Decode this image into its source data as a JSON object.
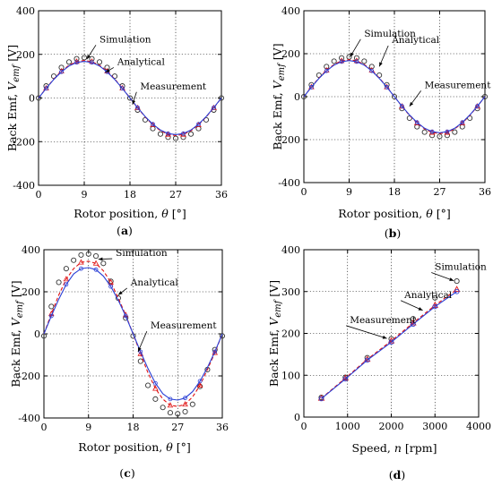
{
  "chart_data": [
    {
      "id": "a",
      "type": "line",
      "panel_label": "a",
      "xlabel": "Rotor position,",
      "xsym": "θ",
      "xunit": "[°]",
      "ylabel": "Back Emf,",
      "ysym": "V",
      "ysub": "emf",
      "yunit": "[V]",
      "xlim": [
        0,
        36
      ],
      "ylim": [
        -400,
        400
      ],
      "xticks": [
        0,
        9,
        18,
        27,
        36
      ],
      "yticks": [
        -400,
        -200,
        0,
        200,
        400
      ],
      "annotations": [
        {
          "text": "Simulation",
          "x": 12.0,
          "y": 255,
          "tx": 9.5,
          "ty": 178
        },
        {
          "text": "Analytical",
          "x": 15.5,
          "y": 152,
          "tx": 13.2,
          "ty": 118
        },
        {
          "text": "Measurement",
          "x": 20.0,
          "y": 40,
          "tx": 18.5,
          "ty": -30
        }
      ],
      "series": [
        {
          "label": "Simulation",
          "style": "circle",
          "color": "#000000",
          "x": [
            0,
            1.5,
            3,
            4.5,
            6,
            7.5,
            9,
            10.5,
            12,
            13.5,
            15,
            16.5,
            18,
            19.5,
            21,
            22.5,
            24,
            25.5,
            27,
            28.5,
            30,
            31.5,
            33,
            34.5,
            36
          ],
          "y": [
            0,
            55,
            100,
            140,
            165,
            180,
            185,
            180,
            165,
            140,
            100,
            55,
            0,
            -55,
            -100,
            -140,
            -165,
            -180,
            -185,
            -180,
            -165,
            -140,
            -100,
            -55,
            0
          ]
        },
        {
          "label": "Analytical",
          "style": "dashed",
          "color": "#e01010",
          "x": [
            0,
            1.5,
            3,
            4.5,
            6,
            7.5,
            9,
            10.5,
            12,
            13.5,
            15,
            16.5,
            18,
            19.5,
            21,
            22.5,
            24,
            25.5,
            27,
            28.5,
            30,
            31.5,
            33,
            34.5,
            36
          ],
          "y": [
            0,
            45,
            87,
            123,
            150,
            167,
            172,
            167,
            150,
            123,
            87,
            45,
            0,
            -45,
            -87,
            -123,
            -150,
            -167,
            -172,
            -167,
            -150,
            -123,
            -87,
            -45,
            0
          ]
        },
        {
          "label": "Measurement",
          "style": "solid",
          "color": "#2a3fd6",
          "x": [
            0,
            1.5,
            3,
            4.5,
            6,
            7.5,
            9,
            10.5,
            12,
            13.5,
            15,
            16.5,
            18,
            19.5,
            21,
            22.5,
            24,
            25.5,
            27,
            28.5,
            30,
            31.5,
            33,
            34.5,
            36
          ],
          "y": [
            0,
            44,
            85,
            120,
            147,
            163,
            168,
            163,
            147,
            120,
            85,
            44,
            0,
            -44,
            -85,
            -120,
            -147,
            -163,
            -168,
            -163,
            -147,
            -120,
            -85,
            -44,
            0
          ]
        }
      ]
    },
    {
      "id": "b",
      "type": "line",
      "panel_label": "b",
      "xlabel": "Rotor position,",
      "xsym": "θ",
      "xunit": "[°]",
      "ylabel": "Back Emf,",
      "ysym": "V",
      "ysub": "emf",
      "yunit": "[V]",
      "xlim": [
        0,
        36
      ],
      "ylim": [
        -400,
        400
      ],
      "xticks": [
        0,
        9,
        18,
        27,
        36
      ],
      "yticks": [
        -400,
        -200,
        0,
        200,
        400
      ],
      "annotations": [
        {
          "text": "Simulation",
          "x": 12.0,
          "y": 280,
          "tx": 9.2,
          "ty": 185
        },
        {
          "text": "Analytical",
          "x": 17.5,
          "y": 250,
          "tx": 15.0,
          "ty": 140
        },
        {
          "text": "Measurement",
          "x": 24.0,
          "y": 40,
          "tx": 21.0,
          "ty": -45
        }
      ],
      "series": [
        {
          "label": "Simulation",
          "style": "circle",
          "color": "#000000",
          "x": [
            0,
            1.5,
            3,
            4.5,
            6,
            7.5,
            9,
            10.5,
            12,
            13.5,
            15,
            16.5,
            18,
            19.5,
            21,
            22.5,
            24,
            25.5,
            27,
            28.5,
            30,
            31.5,
            33,
            34.5,
            36
          ],
          "y": [
            0,
            55,
            100,
            140,
            165,
            180,
            185,
            180,
            165,
            140,
            100,
            55,
            0,
            -55,
            -100,
            -140,
            -165,
            -180,
            -185,
            -180,
            -165,
            -140,
            -100,
            -55,
            0
          ]
        },
        {
          "label": "Analytical",
          "style": "dashed",
          "color": "#e01010",
          "x": [
            0,
            1.5,
            3,
            4.5,
            6,
            7.5,
            9,
            10.5,
            12,
            13.5,
            15,
            16.5,
            18,
            19.5,
            21,
            22.5,
            24,
            25.5,
            27,
            28.5,
            30,
            31.5,
            33,
            34.5,
            36
          ],
          "y": [
            0,
            45,
            87,
            123,
            150,
            167,
            172,
            167,
            150,
            123,
            87,
            45,
            0,
            -45,
            -87,
            -123,
            -150,
            -167,
            -172,
            -167,
            -150,
            -123,
            -87,
            -45,
            0
          ]
        },
        {
          "label": "Measurement",
          "style": "solid",
          "color": "#2a3fd6",
          "x": [
            0,
            1.5,
            3,
            4.5,
            6,
            7.5,
            9,
            10.5,
            12,
            13.5,
            15,
            16.5,
            18,
            19.5,
            21,
            22.5,
            24,
            25.5,
            27,
            28.5,
            30,
            31.5,
            33,
            34.5,
            36
          ],
          "y": [
            0,
            44,
            85,
            120,
            147,
            163,
            168,
            163,
            147,
            120,
            85,
            44,
            0,
            -44,
            -85,
            -120,
            -147,
            -163,
            -168,
            -163,
            -147,
            -120,
            -85,
            -44,
            0
          ]
        }
      ]
    },
    {
      "id": "c",
      "type": "line",
      "panel_label": "c",
      "xlabel": "Rotor position,",
      "xsym": "θ",
      "xunit": "[°]",
      "ylabel": "Back Emf,",
      "ysym": "V",
      "ysub": "emf",
      "yunit": "[V]",
      "xlim": [
        0,
        36
      ],
      "ylim": [
        -400,
        400
      ],
      "xticks": [
        0,
        9,
        18,
        27,
        36
      ],
      "yticks": [
        -400,
        -200,
        0,
        200,
        400
      ],
      "annotations": [
        {
          "text": "Simulation",
          "x": 14.5,
          "y": 370,
          "tx": 11.0,
          "ty": 355
        },
        {
          "text": "Analytical",
          "x": 17.5,
          "y": 230,
          "tx": 15.0,
          "ty": 185
        },
        {
          "text": "Measurement",
          "x": 21.5,
          "y": 25,
          "tx": 19.0,
          "ty": -85
        }
      ],
      "series": [
        {
          "label": "Simulation",
          "style": "circle",
          "color": "#000000",
          "x": [
            0,
            1.5,
            3,
            4.5,
            6,
            7.5,
            9,
            10.5,
            12,
            13.5,
            15,
            16.5,
            18,
            19.5,
            21,
            22.5,
            24,
            25.5,
            27,
            28.5,
            30,
            31.5,
            33,
            34.5,
            36
          ],
          "y": [
            -10,
            130,
            245,
            310,
            350,
            375,
            380,
            370,
            335,
            250,
            170,
            75,
            -10,
            -130,
            -245,
            -310,
            -350,
            -375,
            -380,
            -370,
            -335,
            -250,
            -170,
            -75,
            -10
          ]
        },
        {
          "label": "Analytical",
          "style": "dashed",
          "color": "#e01010",
          "x": [
            0,
            1.5,
            3,
            4.5,
            6,
            7.5,
            9,
            10.5,
            12,
            13.5,
            15,
            16.5,
            18,
            19.5,
            21,
            22.5,
            24,
            25.5,
            27,
            28.5,
            30,
            31.5,
            33,
            34.5,
            36
          ],
          "y": [
            0,
            95,
            185,
            260,
            310,
            340,
            345,
            335,
            300,
            245,
            170,
            90,
            0,
            -95,
            -185,
            -260,
            -310,
            -340,
            -345,
            -335,
            -300,
            -245,
            -170,
            -90,
            0
          ]
        },
        {
          "label": "Measurement",
          "style": "solid",
          "color": "#2a3fd6",
          "x": [
            0,
            1.5,
            3,
            4.5,
            6,
            7.5,
            9,
            10.5,
            12,
            13.5,
            15,
            16.5,
            18,
            19.5,
            21,
            22.5,
            24,
            25.5,
            27,
            28.5,
            30,
            31.5,
            33,
            34.5,
            36
          ],
          "y": [
            0,
            85,
            165,
            235,
            285,
            310,
            315,
            305,
            275,
            225,
            160,
            85,
            0,
            -85,
            -165,
            -235,
            -285,
            -310,
            -315,
            -305,
            -275,
            -225,
            -160,
            -85,
            0
          ]
        }
      ]
    },
    {
      "id": "d",
      "type": "line",
      "panel_label": "d",
      "xlabel": "Speed,",
      "xsym": "n",
      "xunit": "[rpm]",
      "ylabel": "Back Emf,",
      "ysym": "V",
      "ysub": "emf",
      "yunit": "[V]",
      "xlim": [
        0,
        4000
      ],
      "ylim": [
        0,
        400
      ],
      "xticks": [
        0,
        1000,
        2000,
        3000,
        4000
      ],
      "yticks": [
        0,
        100,
        200,
        300,
        400
      ],
      "annotations": [
        {
          "text": "Simulation",
          "x": 3000,
          "y": 352,
          "tx": 3430,
          "ty": 326
        },
        {
          "text": "Analytical",
          "x": 2300,
          "y": 285,
          "tx": 2720,
          "ty": 255
        },
        {
          "text": "Measurement",
          "x": 1050,
          "y": 225,
          "tx": 1900,
          "ty": 188
        }
      ],
      "series": [
        {
          "label": "Simulation",
          "style": "circle",
          "color": "#000000",
          "x": [
            400,
            950,
            1450,
            2000,
            2500,
            3000,
            3500
          ],
          "y": [
            47,
            95,
            142,
            187,
            235,
            285,
            325
          ]
        },
        {
          "label": "Analytical",
          "style": "dashed-triangle",
          "color": "#e01010",
          "x": [
            400,
            950,
            1450,
            2000,
            2500,
            3000,
            3500
          ],
          "y": [
            45,
            93,
            138,
            182,
            225,
            267,
            305
          ]
        },
        {
          "label": "Measurement",
          "style": "solid-circle",
          "color": "#2a3fd6",
          "x": [
            400,
            950,
            1450,
            2000,
            2500,
            3000,
            3500
          ],
          "y": [
            44,
            91,
            136,
            179,
            222,
            264,
            300
          ]
        }
      ]
    }
  ]
}
